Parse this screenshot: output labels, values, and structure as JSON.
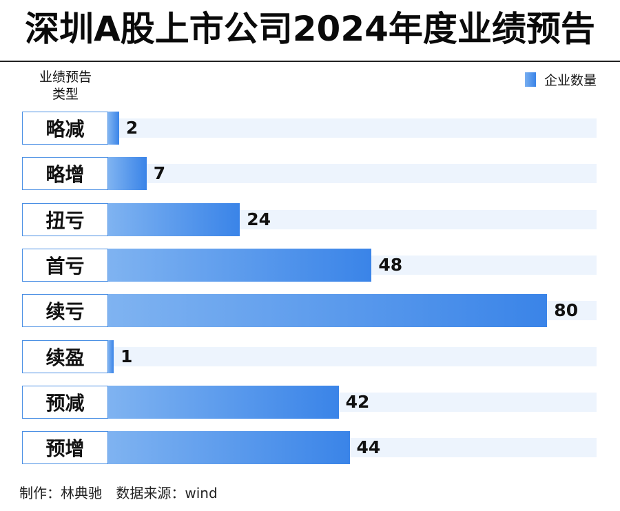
{
  "title": "深圳A股上市公司2024年度业绩预告",
  "y_axis_title_line1": "业绩预告",
  "y_axis_title_line2": "类型",
  "legend_label": "企业数量",
  "chart_data": {
    "type": "bar",
    "orientation": "horizontal",
    "title": "深圳A股上市公司2024年度业绩预告",
    "ylabel": "业绩预告类型",
    "categories": [
      "略减",
      "略增",
      "扭亏",
      "首亏",
      "续亏",
      "续盈",
      "预减",
      "预增"
    ],
    "series": [
      {
        "name": "企业数量",
        "values": [
          2,
          7,
          24,
          48,
          80,
          1,
          42,
          44
        ]
      }
    ],
    "xlim": [
      0,
      89
    ],
    "legend_position": "top-right",
    "grid": false
  },
  "footer": {
    "author": "制作：林典驰",
    "source": "数据来源：wind"
  }
}
